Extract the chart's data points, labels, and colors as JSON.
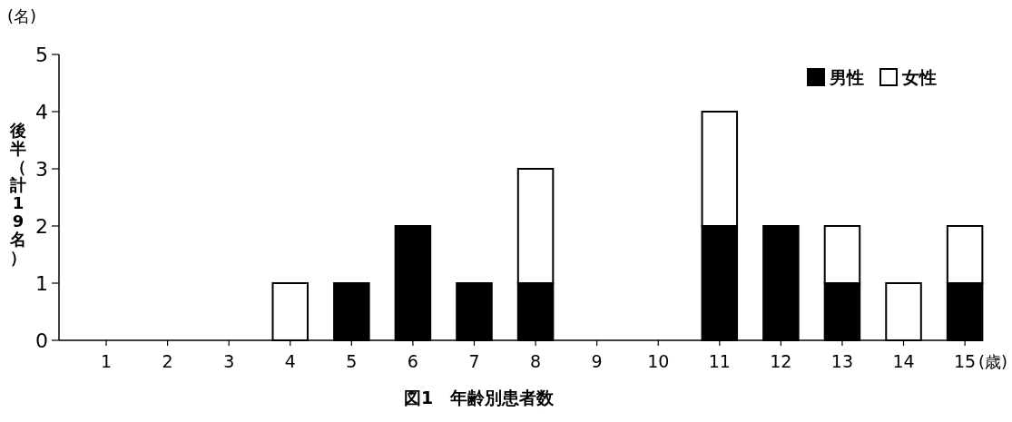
{
  "chart_data": {
    "type": "bar",
    "title": "図1　年齢別患者数",
    "ylabel": "後半（計19名）",
    "annotations": [
      "(名)",
      "(歳)"
    ],
    "categories": [
      "1",
      "2",
      "3",
      "4",
      "5",
      "6",
      "7",
      "8",
      "9",
      "10",
      "11",
      "12",
      "13",
      "14",
      "15"
    ],
    "stacked": true,
    "series": [
      {
        "name": "男性",
        "color": "#000000",
        "values": [
          0,
          0,
          0,
          0,
          1,
          2,
          1,
          1,
          0,
          0,
          2,
          2,
          1,
          0,
          1
        ]
      },
      {
        "name": "女性",
        "color": "#ffffff",
        "values": [
          0,
          0,
          0,
          1,
          0,
          0,
          0,
          2,
          0,
          0,
          2,
          0,
          1,
          1,
          1
        ]
      }
    ],
    "ylim": [
      0,
      5
    ],
    "yticks": [
      0,
      1,
      2,
      3,
      4,
      5
    ],
    "grid": false,
    "legend": "top right"
  }
}
